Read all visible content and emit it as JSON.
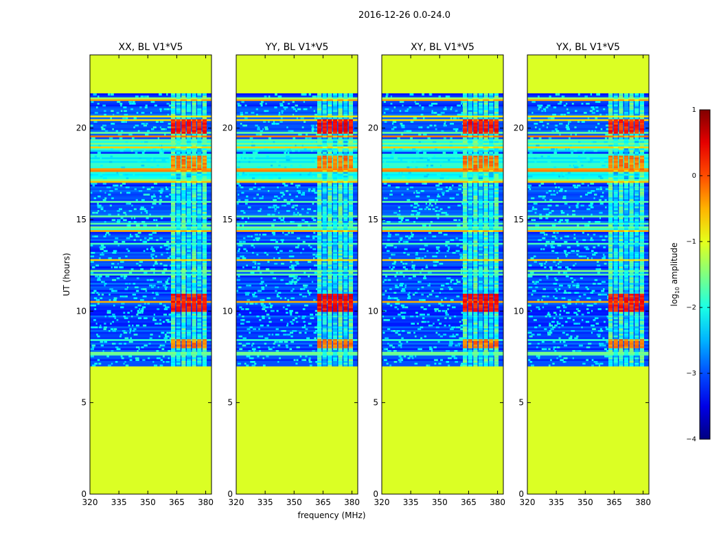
{
  "figure": {
    "suptitle": "2016-12-26 0.0-24.0",
    "xlabel": "frequency (MHz)",
    "ylabel": "UT (hours)"
  },
  "chart_data": {
    "type": "heatmap",
    "panels": [
      {
        "title": "XX, BL V1*V5",
        "strength": 1.0
      },
      {
        "title": "YY, BL V1*V5",
        "strength": 1.15
      },
      {
        "title": "XY, BL V1*V5",
        "strength": 1.0
      },
      {
        "title": "YX, BL V1*V5",
        "strength": 0.9
      }
    ],
    "xlim": [
      320,
      383
    ],
    "x_ticks": [
      320,
      335,
      350,
      365,
      380
    ],
    "ylim": [
      0,
      24
    ],
    "y_ticks": [
      0,
      5,
      10,
      15,
      20
    ],
    "observation_window_hours": [
      7.0,
      21.9
    ],
    "rfi_band_mhz": [
      362,
      381
    ],
    "strong_bursts_hours": [
      [
        10.0,
        11.0
      ],
      [
        19.7,
        20.5
      ],
      [
        17.7,
        18.5
      ],
      [
        8.0,
        8.5
      ]
    ],
    "colorbar": {
      "label_prefix": "log",
      "label_sub": "10",
      "label_suffix": " amplitude",
      "range": [
        -4,
        1
      ],
      "ticks": [
        "1",
        "0",
        "−1",
        "−2",
        "−3",
        "−4"
      ],
      "tick_values": [
        1,
        0,
        -1,
        -2,
        -3,
        -4
      ],
      "colormap": "jet"
    }
  }
}
